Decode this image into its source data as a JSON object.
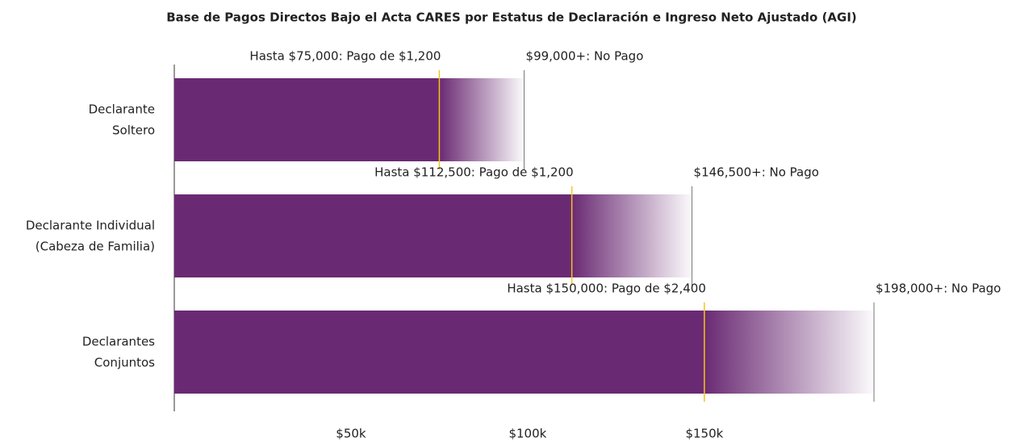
{
  "chart_data": {
    "type": "bar",
    "orientation": "horizontal",
    "title": "Base de Pagos Directos Bajo el Acta CARES por Estatus de Declaración e Ingreso Neto Ajustado (AGI)",
    "categories": [
      [
        "Declarante",
        "Soltero"
      ],
      [
        "Declarante Individual",
        "(Cabeza de Familia)"
      ],
      [
        "Declarantes",
        "Conjuntos"
      ]
    ],
    "series": [
      {
        "values": [
          75000,
          112500,
          150000
        ],
        "color": "#f5c518",
        "value_labels": [
          "Hasta $75,000: Pago de $1,200",
          "Hasta $112,500: Pago de $1,200",
          "Hasta $150,000: Pago de $2,400"
        ]
      },
      {
        "values": [
          99000,
          146500,
          198000
        ],
        "color": "#6a2a73",
        "value_labels": [
          "$99,000+: No Pago",
          "$146,500+: No Pago",
          "$198,000+: No Pago"
        ]
      }
    ],
    "bar_color": "#6a2a73",
    "xlim": [
      0,
      240000
    ],
    "xticks": [
      {
        "value": 50000,
        "label": "$50k"
      },
      {
        "value": 100000,
        "label": "$100k"
      },
      {
        "value": 150000,
        "label": "$150k"
      }
    ],
    "grid": false
  }
}
